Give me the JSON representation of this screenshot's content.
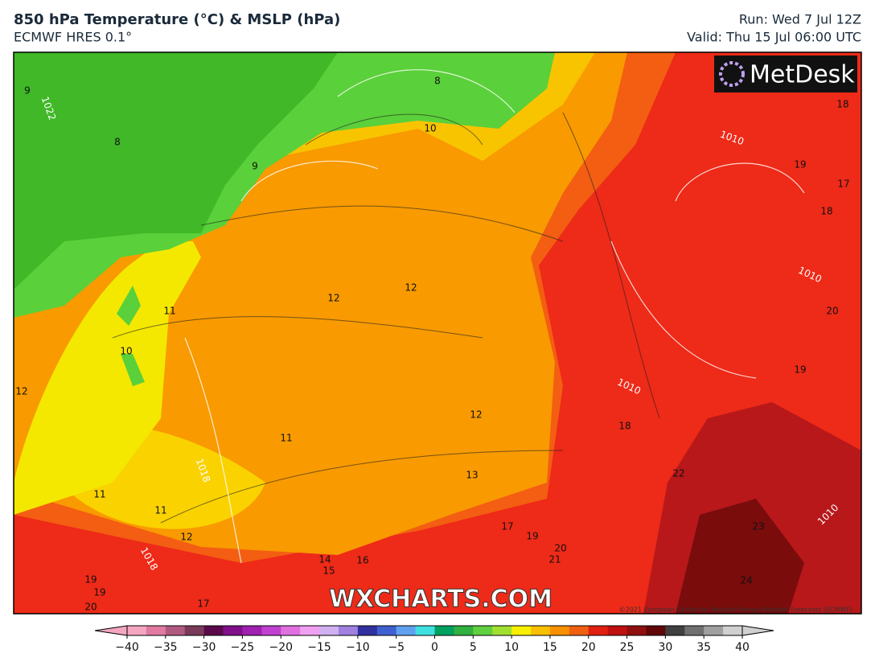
{
  "header": {
    "title": "850 hPa Temperature (°C) & MSLP (hPa)",
    "subtitle": "ECMWF HRES 0.1°",
    "run": "Run: Wed 7 Jul 12Z",
    "valid": "Valid: Thu 15 Jul 06:00 UTC"
  },
  "map": {
    "logo": "MetDesk",
    "watermark": "WXCHARTS.COM",
    "copyright": "©2021 European Centre for Medium-Range Weather Forecasts (ECMWF)",
    "labels": [
      9,
      1022,
      8,
      9,
      8,
      10,
      1010,
      18,
      19,
      17,
      18,
      1010,
      20,
      12,
      12,
      11,
      10,
      12,
      1010,
      19,
      12,
      18,
      11,
      1018,
      13,
      22,
      11,
      11,
      12,
      17,
      19,
      23,
      1010,
      20,
      21,
      14,
      15,
      16,
      1018,
      19,
      19,
      20,
      17,
      24
    ]
  },
  "colorbar": {
    "range": [
      -40,
      40
    ],
    "ticks": [
      {
        "value": -40,
        "label": "−40"
      },
      {
        "value": -35,
        "label": "−35"
      },
      {
        "value": -30,
        "label": "−30"
      },
      {
        "value": -25,
        "label": "−25"
      },
      {
        "value": -20,
        "label": "−20"
      },
      {
        "value": -15,
        "label": "−15"
      },
      {
        "value": -10,
        "label": "−10"
      },
      {
        "value": -5,
        "label": "−5"
      },
      0,
      5,
      10,
      15,
      20,
      25,
      30,
      35,
      40
    ],
    "colors": [
      "#f4a6c0",
      "#e07aa0",
      "#b05a80",
      "#7a3a5a",
      "#5a0a4a",
      "#80108a",
      "#a020b0",
      "#c040d0",
      "#e070e0",
      "#f0a0f0",
      "#d0b0f0",
      "#a080e0",
      "#3030a0",
      "#4060d0",
      "#60a0f0",
      "#40e0e0",
      "#00a060",
      "#30b040",
      "#60d040",
      "#a0e030",
      "#f8f000",
      "#f8c000",
      "#f89000",
      "#f06010",
      "#e02010",
      "#c01010",
      "#901010",
      "#600808",
      "#404040",
      "#707070",
      "#a0a0a0",
      "#d0d0d0"
    ]
  }
}
